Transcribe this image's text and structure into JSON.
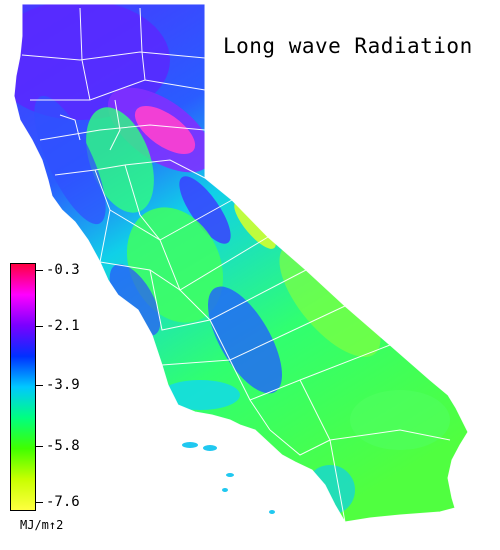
{
  "title": "Long wave Radiation",
  "legend": {
    "ticks": [
      "-0.3",
      "-2.1",
      "-3.9",
      "-5.8",
      "-7.6"
    ],
    "unit": "MJ/m↑2",
    "colors": [
      "#ff0040",
      "#ff00ff",
      "#7a00ff",
      "#0030ff",
      "#00c8ff",
      "#00ff80",
      "#40ff00",
      "#c8ff00",
      "#ffff40"
    ]
  },
  "map": {
    "region": "California",
    "boundary_color": "#ffffff",
    "colors": {
      "high": "#ff40c0",
      "mid_high": "#6a2cff",
      "mid": "#1a5cff",
      "mid_low": "#10d0e8",
      "low": "#30ff60",
      "lowest": "#c8ff20"
    }
  }
}
